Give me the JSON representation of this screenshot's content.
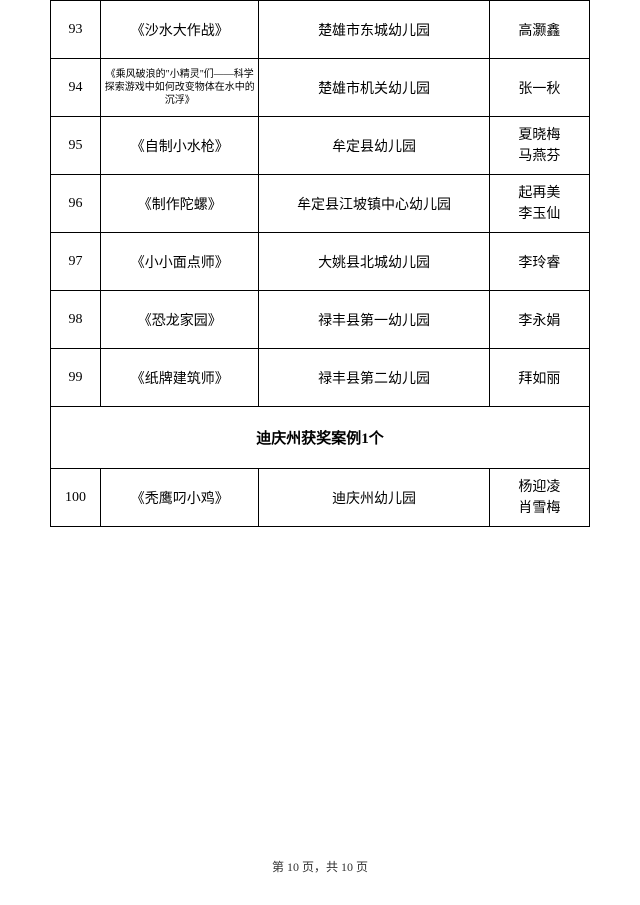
{
  "rows": [
    {
      "num": "93",
      "title": "《沙水大作战》",
      "org": "楚雄市东城幼儿园",
      "author": "高灏鑫"
    },
    {
      "num": "94",
      "title": "《乘风破浪的\"小精灵\"们——科学探索游戏中如何改变物体在水中的沉浮》",
      "org": "楚雄市机关幼儿园",
      "author": "张一秋",
      "titleSmall": true
    },
    {
      "num": "95",
      "title": "《自制小水枪》",
      "org": "牟定县幼儿园",
      "author": "夏晓梅\n马燕芬",
      "authorMulti": true
    },
    {
      "num": "96",
      "title": "《制作陀螺》",
      "org": "牟定县江坡镇中心幼儿园",
      "author": "起再美\n李玉仙",
      "authorMulti": true
    },
    {
      "num": "97",
      "title": "《小小面点师》",
      "org": "大姚县北城幼儿园",
      "author": "李玲睿"
    },
    {
      "num": "98",
      "title": "《恐龙家园》",
      "org": "禄丰县第一幼儿园",
      "author": "李永娟"
    },
    {
      "num": "99",
      "title": "《纸牌建筑师》",
      "org": "禄丰县第二幼儿园",
      "author": "拜如丽"
    }
  ],
  "sectionHeader": "迪庆州获奖案例1个",
  "rows2": [
    {
      "num": "100",
      "title": "《秃鹰叼小鸡》",
      "org": "迪庆州幼儿园",
      "author": "杨迎凌\n肖雪梅",
      "authorMulti": true
    }
  ],
  "footer": {
    "pageText": "第 10 页，共 10 页"
  }
}
